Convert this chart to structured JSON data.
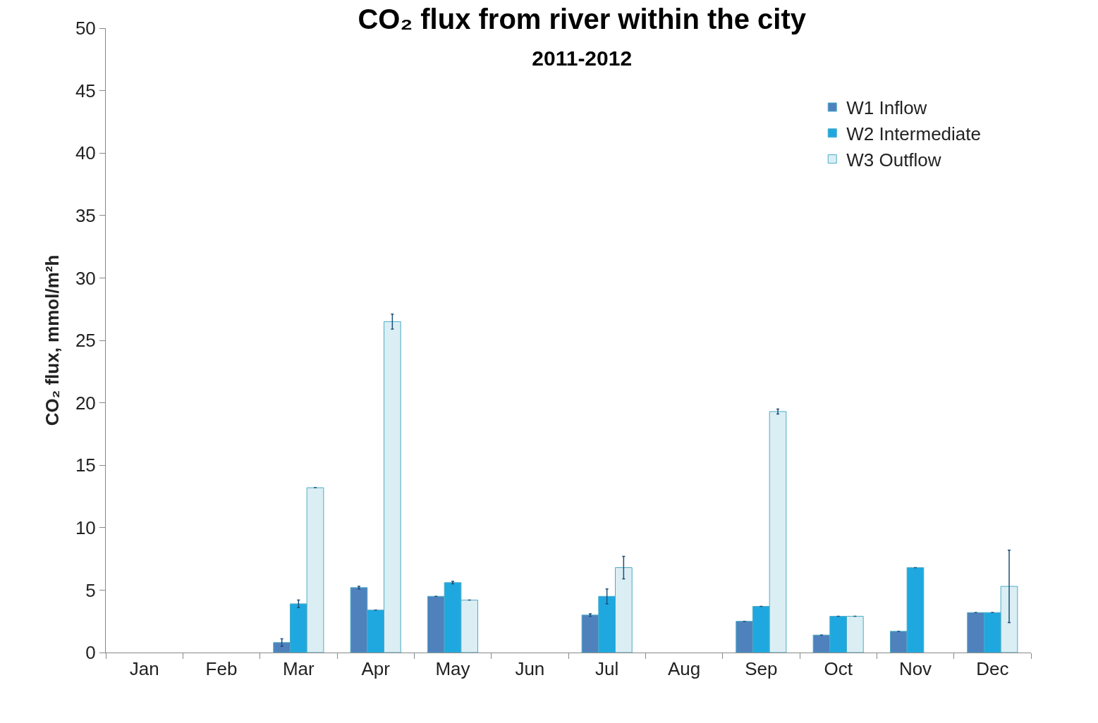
{
  "chart_data": {
    "type": "bar",
    "title": "CO₂ flux from river within the city",
    "subtitle": "2011-2012",
    "ylabel": "CO₂ flux, mmol/m²h",
    "categories": [
      "Jan",
      "Feb",
      "Mar",
      "Apr",
      "May",
      "Jun",
      "Jul",
      "Aug",
      "Sep",
      "Oct",
      "Nov",
      "Dec"
    ],
    "series": [
      {
        "name": "W1 Inflow",
        "color": "#4f81bd",
        "values": [
          null,
          null,
          0.8,
          5.2,
          4.5,
          null,
          3.0,
          null,
          2.5,
          1.4,
          1.7,
          3.2
        ],
        "errors": [
          null,
          null,
          0.3,
          0.1,
          null,
          null,
          0.1,
          null,
          null,
          null,
          null,
          null
        ]
      },
      {
        "name": "W2 Intermediate",
        "color": "#1fa8e0",
        "values": [
          null,
          null,
          3.9,
          3.4,
          5.6,
          null,
          4.5,
          null,
          3.7,
          2.9,
          6.8,
          3.2
        ],
        "errors": [
          null,
          null,
          0.3,
          null,
          0.1,
          null,
          0.6,
          null,
          null,
          null,
          null,
          null
        ]
      },
      {
        "name": "W3 Outflow",
        "color": "#dbeef4",
        "values": [
          null,
          null,
          13.2,
          26.5,
          4.2,
          null,
          6.8,
          null,
          19.3,
          2.9,
          null,
          5.3
        ],
        "errors": [
          null,
          null,
          null,
          0.6,
          null,
          null,
          0.9,
          null,
          0.2,
          null,
          null,
          2.9
        ]
      }
    ],
    "ylim": [
      0,
      50
    ],
    "yticks": [
      0,
      5,
      10,
      15,
      20,
      25,
      30,
      35,
      40,
      45,
      50
    ],
    "legend": "top right"
  }
}
